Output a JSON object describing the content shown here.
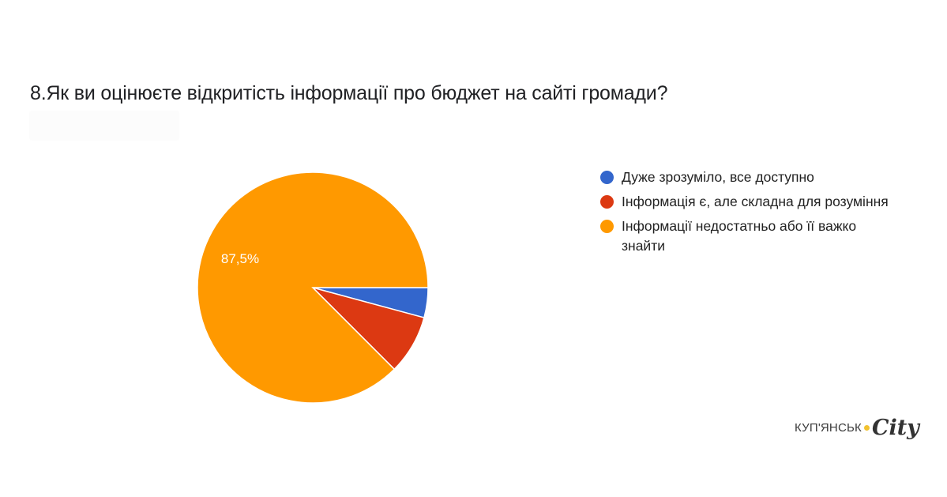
{
  "header": {
    "title": "8.Як ви оцінюєте відкритість інформації про бюджет на сайті громади?"
  },
  "logo": {
    "text": "КУП'ЯНСЬК",
    "script": "City",
    "dot_color": "#f2c230"
  },
  "legend": {
    "items": [
      {
        "label": "Дуже зрозуміло, все доступно",
        "color": "#3366cc"
      },
      {
        "label": "Інформація є, але складна для розуміння",
        "color": "#dc3912"
      },
      {
        "label": "Інформації недостатньо або її важко знайти",
        "color": "#ff9900"
      }
    ]
  },
  "chart_data": {
    "type": "pie",
    "title": "8.Як ви оцінюєте відкритість інформації про бюджет на сайті громади?",
    "categories": [
      "Дуже зрозуміло, все доступно",
      "Інформація є, але складна для розуміння",
      "Інформації недостатньо або її важко знайти"
    ],
    "values": [
      4.2,
      8.3,
      87.5
    ],
    "colors": [
      "#3366cc",
      "#dc3912",
      "#ff9900"
    ],
    "data_labels": [
      "",
      "",
      "87,5%"
    ],
    "legend_position": "right",
    "start_angle_deg": 90,
    "direction": "clockwise-from-3-oclock"
  }
}
